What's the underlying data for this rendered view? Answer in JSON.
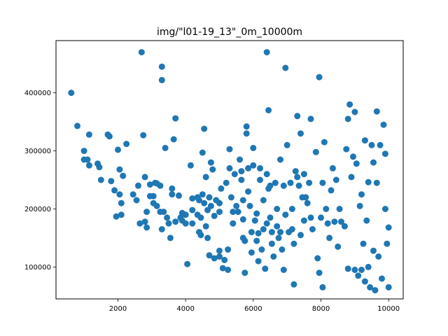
{
  "chart_data": {
    "type": "scatter",
    "title": "img/\"l01-19_13\"_0m_10000m",
    "xlabel": "",
    "ylabel": "",
    "xlim": [
      170,
      10430
    ],
    "ylim": [
      45000,
      490000
    ],
    "xticks": [
      2000,
      4000,
      6000,
      8000,
      10000
    ],
    "xtick_labels": [
      "2000",
      "4000",
      "6000",
      "8000",
      "10000"
    ],
    "yticks": [
      100000,
      200000,
      300000,
      400000
    ],
    "ytick_labels": [
      "100000",
      "200000",
      "300000",
      "400000"
    ],
    "grid": false,
    "legend": "none",
    "marker_color": "#1f77b4",
    "points": [
      [
        620,
        400000
      ],
      [
        800,
        343000
      ],
      [
        1000,
        300000
      ],
      [
        1000,
        285000
      ],
      [
        1100,
        285000
      ],
      [
        1150,
        275000
      ],
      [
        1150,
        328000
      ],
      [
        1400,
        278000
      ],
      [
        1450,
        272000
      ],
      [
        1500,
        250000
      ],
      [
        1700,
        328000
      ],
      [
        1750,
        325000
      ],
      [
        1800,
        248000
      ],
      [
        1900,
        232000
      ],
      [
        1950,
        187000
      ],
      [
        2000,
        302000
      ],
      [
        2050,
        268000
      ],
      [
        2050,
        225000
      ],
      [
        2100,
        210000
      ],
      [
        2100,
        190000
      ],
      [
        2150,
        257000
      ],
      [
        2250,
        312000
      ],
      [
        2450,
        225000
      ],
      [
        2550,
        215000
      ],
      [
        2600,
        240000
      ],
      [
        2650,
        175000
      ],
      [
        2700,
        470000
      ],
      [
        2750,
        327000
      ],
      [
        2800,
        255000
      ],
      [
        2800,
        178000
      ],
      [
        2850,
        168000
      ],
      [
        2850,
        195000
      ],
      [
        2950,
        242000
      ],
      [
        2950,
        222000
      ],
      [
        3050,
        210000
      ],
      [
        3050,
        222000
      ],
      [
        3100,
        245000
      ],
      [
        3150,
        244000
      ],
      [
        3150,
        205000
      ],
      [
        3250,
        240000
      ],
      [
        3250,
        195000
      ],
      [
        3300,
        422000
      ],
      [
        3300,
        445000
      ],
      [
        3300,
        165000
      ],
      [
        3350,
        195000
      ],
      [
        3400,
        305000
      ],
      [
        3450,
        185000
      ],
      [
        3500,
        175000
      ],
      [
        3550,
        150000
      ],
      [
        3600,
        235000
      ],
      [
        3600,
        225000
      ],
      [
        3650,
        320000
      ],
      [
        3700,
        356000
      ],
      [
        3700,
        178000
      ],
      [
        3800,
        223000
      ],
      [
        3850,
        185000
      ],
      [
        3900,
        193000
      ],
      [
        3900,
        180000
      ],
      [
        4000,
        190000
      ],
      [
        4000,
        175000
      ],
      [
        4050,
        105000
      ],
      [
        4150,
        275000
      ],
      [
        4200,
        218000
      ],
      [
        4200,
        198000
      ],
      [
        4200,
        175000
      ],
      [
        4350,
        190000
      ],
      [
        4350,
        220000
      ],
      [
        4400,
        215000
      ],
      [
        4400,
        160000
      ],
      [
        4450,
        155000
      ],
      [
        4450,
        185000
      ],
      [
        4500,
        225000
      ],
      [
        4500,
        297000
      ],
      [
        4550,
        210000
      ],
      [
        4550,
        338000
      ],
      [
        4600,
        255000
      ],
      [
        4600,
        170000
      ],
      [
        4650,
        198000
      ],
      [
        4650,
        150000
      ],
      [
        4700,
        220000
      ],
      [
        4700,
        120000
      ],
      [
        4750,
        205000
      ],
      [
        4750,
        280000
      ],
      [
        4800,
        268000
      ],
      [
        4850,
        115000
      ],
      [
        4850,
        188000
      ],
      [
        4900,
        215000
      ],
      [
        5000,
        210000
      ],
      [
        5000,
        195000
      ],
      [
        5000,
        128000
      ],
      [
        5000,
        118000
      ],
      [
        5050,
        235000
      ],
      [
        5100,
        98000
      ],
      [
        5150,
        112000
      ],
      [
        5200,
        245000
      ],
      [
        5250,
        95000
      ],
      [
        5250,
        130000
      ],
      [
        5300,
        303000
      ],
      [
        5300,
        270000
      ],
      [
        5350,
        220000
      ],
      [
        5400,
        175000
      ],
      [
        5400,
        195000
      ],
      [
        5450,
        260000
      ],
      [
        5500,
        205000
      ],
      [
        5550,
        195000
      ],
      [
        5600,
        285000
      ],
      [
        5650,
        265000
      ],
      [
        5650,
        250000
      ],
      [
        5700,
        215000
      ],
      [
        5700,
        182000
      ],
      [
        5700,
        150000
      ],
      [
        5750,
        145000
      ],
      [
        5750,
        90000
      ],
      [
        5800,
        342000
      ],
      [
        5800,
        330000
      ],
      [
        5850,
        270000
      ],
      [
        5850,
        230000
      ],
      [
        5900,
        205000
      ],
      [
        5950,
        160000
      ],
      [
        5950,
        125000
      ],
      [
        6000,
        305000
      ],
      [
        6000,
        275000
      ],
      [
        6050,
        180000
      ],
      [
        6100,
        192000
      ],
      [
        6100,
        145000
      ],
      [
        6150,
        158000
      ],
      [
        6150,
        110000
      ],
      [
        6200,
        270000
      ],
      [
        6200,
        250000
      ],
      [
        6250,
        130000
      ],
      [
        6300,
        215000
      ],
      [
        6300,
        165000
      ],
      [
        6350,
        97000
      ],
      [
        6400,
        470000
      ],
      [
        6400,
        260000
      ],
      [
        6400,
        175000
      ],
      [
        6450,
        370000
      ],
      [
        6450,
        235000
      ],
      [
        6500,
        240000
      ],
      [
        6500,
        185000
      ],
      [
        6550,
        160000
      ],
      [
        6550,
        140000
      ],
      [
        6600,
        118000
      ],
      [
        6650,
        245000
      ],
      [
        6700,
        200000
      ],
      [
        6700,
        170000
      ],
      [
        6750,
        150000
      ],
      [
        6800,
        285000
      ],
      [
        6800,
        160000
      ],
      [
        6850,
        130000
      ],
      [
        6900,
        240000
      ],
      [
        6900,
        95000
      ],
      [
        6950,
        443000
      ],
      [
        6950,
        190000
      ],
      [
        7000,
        310000
      ],
      [
        7050,
        160000
      ],
      [
        7100,
        245000
      ],
      [
        7150,
        200000
      ],
      [
        7150,
        165000
      ],
      [
        7200,
        140000
      ],
      [
        7200,
        70000
      ],
      [
        7250,
        265000
      ],
      [
        7300,
        360000
      ],
      [
        7300,
        255000
      ],
      [
        7350,
        240000
      ],
      [
        7400,
        330000
      ],
      [
        7400,
        155000
      ],
      [
        7450,
        220000
      ],
      [
        7500,
        260000
      ],
      [
        7500,
        180000
      ],
      [
        7550,
        220000
      ],
      [
        7600,
        210000
      ],
      [
        7650,
        245000
      ],
      [
        7700,
        185000
      ],
      [
        7700,
        355000
      ],
      [
        7750,
        165000
      ],
      [
        7850,
        298000
      ],
      [
        7900,
        115000
      ],
      [
        7950,
        427000
      ],
      [
        7950,
        90000
      ],
      [
        8000,
        185000
      ],
      [
        8050,
        245000
      ],
      [
        8050,
        65000
      ],
      [
        8100,
        315000
      ],
      [
        8150,
        200000
      ],
      [
        8200,
        175000
      ],
      [
        8250,
        150000
      ],
      [
        8300,
        232000
      ],
      [
        8350,
        270000
      ],
      [
        8400,
        178000
      ],
      [
        8450,
        250000
      ],
      [
        8500,
        135000
      ],
      [
        8550,
        200000
      ],
      [
        8600,
        178000
      ],
      [
        8700,
        170000
      ],
      [
        8750,
        303000
      ],
      [
        8800,
        97000
      ],
      [
        8800,
        355000
      ],
      [
        8850,
        380000
      ],
      [
        8900,
        255000
      ],
      [
        8950,
        290000
      ],
      [
        9000,
        367000
      ],
      [
        9000,
        95000
      ],
      [
        9050,
        278000
      ],
      [
        9100,
        85000
      ],
      [
        9150,
        205000
      ],
      [
        9200,
        225000
      ],
      [
        9250,
        140000
      ],
      [
        9300,
        75000
      ],
      [
        9300,
        318000
      ],
      [
        9350,
        180000
      ],
      [
        9400,
        246000
      ],
      [
        9450,
        65000
      ],
      [
        9500,
        310000
      ],
      [
        9550,
        280000
      ],
      [
        9600,
        60000
      ],
      [
        9650,
        245000
      ],
      [
        9650,
        368000
      ],
      [
        9700,
        118000
      ],
      [
        9750,
        310000
      ],
      [
        9800,
        80000
      ],
      [
        9850,
        345000
      ],
      [
        9900,
        295000
      ],
      [
        9900,
        200000
      ],
      [
        9950,
        140000
      ],
      [
        10000,
        65000
      ],
      [
        10000,
        168000
      ],
      [
        9200,
        95000
      ],
      [
        9400,
        100000
      ],
      [
        9550,
        128000
      ]
    ]
  }
}
